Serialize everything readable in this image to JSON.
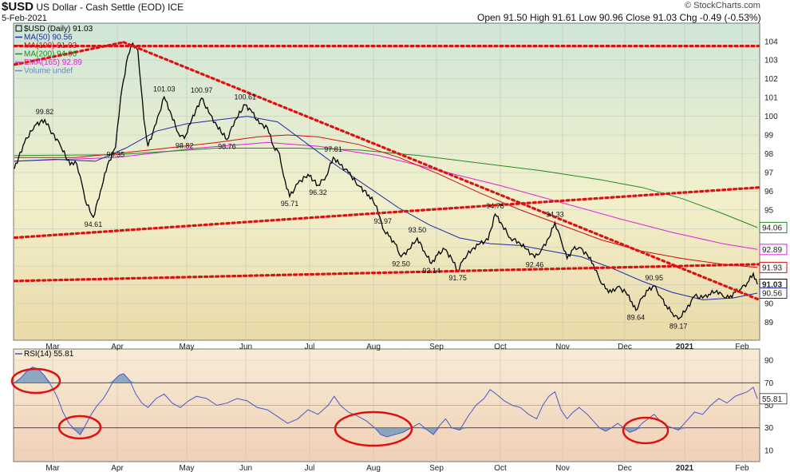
{
  "header": {
    "symbol": "$USD",
    "name": "US Dollar - Cash Settle (EOD) ICE",
    "date": "5-Feb-2021",
    "ohlc": "Open 91.50  High 91.61  Low 90.96  Close 91.03  Chg -0.49 (-0.53%)",
    "credit": "© StockCharts.com"
  },
  "colors": {
    "ma50": "#1c2aa8",
    "ma100": "#d01010",
    "ma200": "#218a21",
    "ema165": "#e020e0",
    "price": "#000000",
    "trend": "#dd1111",
    "rsi": "#4a58c8"
  },
  "chart_data": [
    {
      "type": "line",
      "title": "$USD (Daily) 91.03",
      "x_labels": [
        "Mar",
        "Apr",
        "May",
        "Jun",
        "Jul",
        "Aug",
        "Sep",
        "Oct",
        "Nov",
        "Dec",
        "2021",
        "Feb"
      ],
      "y_ticks": [
        89,
        90,
        91,
        92,
        93,
        94,
        95,
        96,
        97,
        98,
        99,
        100,
        101,
        102,
        103,
        104
      ],
      "ylim": [
        88.3,
        104.8
      ],
      "legend": [
        {
          "label": "$USD (Daily) 91.03"
        },
        {
          "label": "MA(50) 90.56"
        },
        {
          "label": "MA(100) 91.93"
        },
        {
          "label": "MA(200) 94.06"
        },
        {
          "label": "EMA(165) 92.89"
        },
        {
          "label": "Volume undef"
        }
      ],
      "price_path": [
        [
          0,
          97.2
        ],
        [
          10,
          98.6
        ],
        [
          20,
          99.5
        ],
        [
          30,
          99.82
        ],
        [
          35,
          99.3
        ],
        [
          45,
          98.5
        ],
        [
          55,
          97.4
        ],
        [
          60,
          97.6
        ],
        [
          65,
          96.8
        ],
        [
          70,
          95.5
        ],
        [
          78,
          94.61
        ],
        [
          85,
          96.0
        ],
        [
          92,
          97.4
        ],
        [
          100,
          98.35
        ],
        [
          105,
          101.0
        ],
        [
          112,
          103.2
        ],
        [
          117,
          103.9
        ],
        [
          122,
          103.5
        ],
        [
          128,
          99.8
        ],
        [
          132,
          98.4
        ],
        [
          140,
          99.6
        ],
        [
          148,
          101.03
        ],
        [
          155,
          100.1
        ],
        [
          162,
          99.1
        ],
        [
          168,
          98.82
        ],
        [
          175,
          99.8
        ],
        [
          185,
          100.97
        ],
        [
          192,
          100.2
        ],
        [
          200,
          99.5
        ],
        [
          210,
          98.76
        ],
        [
          218,
          99.8
        ],
        [
          228,
          100.61
        ],
        [
          235,
          100.2
        ],
        [
          242,
          99.6
        ],
        [
          250,
          99.4
        ],
        [
          256,
          98.4
        ],
        [
          262,
          98.0
        ],
        [
          266,
          96.8
        ],
        [
          272,
          95.71
        ],
        [
          280,
          96.4
        ],
        [
          290,
          96.9
        ],
        [
          300,
          96.32
        ],
        [
          308,
          96.8
        ],
        [
          315,
          97.81
        ],
        [
          322,
          97.4
        ],
        [
          330,
          97.0
        ],
        [
          340,
          96.3
        ],
        [
          350,
          95.8
        ],
        [
          358,
          95.2
        ],
        [
          364,
          94.0
        ],
        [
          370,
          93.6
        ],
        [
          376,
          93.2
        ],
        [
          382,
          92.5
        ],
        [
          390,
          92.9
        ],
        [
          398,
          93.5
        ],
        [
          405,
          92.8
        ],
        [
          412,
          92.14
        ],
        [
          418,
          92.6
        ],
        [
          425,
          92.9
        ],
        [
          432,
          92.4
        ],
        [
          438,
          91.75
        ],
        [
          444,
          92.4
        ],
        [
          452,
          92.9
        ],
        [
          460,
          93.2
        ],
        [
          468,
          93.4
        ],
        [
          475,
          94.78
        ],
        [
          482,
          94.2
        ],
        [
          490,
          93.5
        ],
        [
          498,
          93.3
        ],
        [
          506,
          92.9
        ],
        [
          514,
          92.46
        ],
        [
          520,
          92.8
        ],
        [
          528,
          93.5
        ],
        [
          534,
          94.33
        ],
        [
          540,
          93.4
        ],
        [
          546,
          92.4
        ],
        [
          552,
          92.9
        ],
        [
          558,
          93.0
        ],
        [
          566,
          92.6
        ],
        [
          572,
          92.1
        ],
        [
          578,
          91.3
        ],
        [
          584,
          90.8
        ],
        [
          590,
          90.6
        ],
        [
          596,
          90.9
        ],
        [
          604,
          90.6
        ],
        [
          610,
          90.1
        ],
        [
          614,
          89.64
        ],
        [
          620,
          90.3
        ],
        [
          626,
          90.7
        ],
        [
          632,
          90.95
        ],
        [
          638,
          90.4
        ],
        [
          644,
          89.9
        ],
        [
          650,
          89.5
        ],
        [
          656,
          89.17
        ],
        [
          664,
          89.7
        ],
        [
          672,
          90.4
        ],
        [
          680,
          90.3
        ],
        [
          686,
          90.5
        ],
        [
          694,
          90.7
        ],
        [
          700,
          90.4
        ],
        [
          706,
          90.3
        ],
        [
          712,
          90.6
        ],
        [
          718,
          90.8
        ],
        [
          724,
          91.1
        ],
        [
          730,
          91.61
        ],
        [
          734,
          91.03
        ]
      ],
      "ma50_path": [
        [
          0,
          97.6
        ],
        [
          40,
          97.7
        ],
        [
          80,
          97.6
        ],
        [
          110,
          98.3
        ],
        [
          140,
          99.2
        ],
        [
          170,
          99.6
        ],
        [
          200,
          99.8
        ],
        [
          230,
          100.0
        ],
        [
          260,
          99.7
        ],
        [
          290,
          98.5
        ],
        [
          320,
          97.3
        ],
        [
          350,
          96.2
        ],
        [
          380,
          95.1
        ],
        [
          410,
          94.2
        ],
        [
          440,
          93.5
        ],
        [
          470,
          93.2
        ],
        [
          500,
          93.1
        ],
        [
          530,
          92.8
        ],
        [
          560,
          92.5
        ],
        [
          590,
          91.9
        ],
        [
          620,
          91.2
        ],
        [
          650,
          90.6
        ],
        [
          680,
          90.2
        ],
        [
          710,
          90.3
        ],
        [
          734,
          90.56
        ]
      ],
      "ma100_path": [
        [
          0,
          97.8
        ],
        [
          60,
          97.8
        ],
        [
          100,
          98.0
        ],
        [
          150,
          98.3
        ],
        [
          200,
          98.6
        ],
        [
          240,
          98.9
        ],
        [
          270,
          99.0
        ],
        [
          300,
          98.9
        ],
        [
          340,
          98.5
        ],
        [
          380,
          97.8
        ],
        [
          420,
          96.9
        ],
        [
          460,
          95.9
        ],
        [
          500,
          95.0
        ],
        [
          540,
          94.2
        ],
        [
          580,
          93.4
        ],
        [
          620,
          92.8
        ],
        [
          660,
          92.4
        ],
        [
          700,
          92.1
        ],
        [
          734,
          91.93
        ]
      ],
      "ma200_path": [
        [
          0,
          97.9
        ],
        [
          100,
          97.95
        ],
        [
          200,
          98.3
        ],
        [
          280,
          98.3
        ],
        [
          340,
          98.2
        ],
        [
          400,
          97.9
        ],
        [
          460,
          97.5
        ],
        [
          520,
          97.1
        ],
        [
          580,
          96.6
        ],
        [
          620,
          96.2
        ],
        [
          660,
          95.6
        ],
        [
          700,
          94.8
        ],
        [
          734,
          94.06
        ]
      ],
      "ema165_path": [
        [
          0,
          97.6
        ],
        [
          100,
          97.8
        ],
        [
          180,
          98.3
        ],
        [
          250,
          98.6
        ],
        [
          300,
          98.4
        ],
        [
          360,
          97.9
        ],
        [
          420,
          97.1
        ],
        [
          480,
          96.3
        ],
        [
          540,
          95.4
        ],
        [
          600,
          94.5
        ],
        [
          650,
          93.8
        ],
        [
          700,
          93.2
        ],
        [
          734,
          92.89
        ]
      ],
      "trendlines": [
        [
          [
            -5,
            102.7
          ],
          [
            108,
            103.95
          ]
        ],
        [
          [
            0,
            103.75
          ],
          [
            735,
            103.75
          ]
        ],
        [
          [
            108,
            103.95
          ],
          [
            736,
            90.2
          ]
        ],
        [
          [
            -5,
            93.5
          ],
          [
            736,
            96.2
          ]
        ],
        [
          [
            -5,
            91.2
          ],
          [
            736,
            92.1
          ]
        ]
      ],
      "annotations": [
        {
          "text": "99.82",
          "x": 30,
          "y": 99.82
        },
        {
          "text": "94.61",
          "x": 78,
          "y": 94.61
        },
        {
          "text": "98.35",
          "x": 100,
          "y": 98.35
        },
        {
          "text": "101.03",
          "x": 148,
          "y": 101.03
        },
        {
          "text": "98.82",
          "x": 168,
          "y": 98.82
        },
        {
          "text": "100.97",
          "x": 185,
          "y": 100.97
        },
        {
          "text": "98.76",
          "x": 210,
          "y": 98.76
        },
        {
          "text": "100.61",
          "x": 228,
          "y": 100.61
        },
        {
          "text": "95.71",
          "x": 272,
          "y": 95.71
        },
        {
          "text": "96.32",
          "x": 300,
          "y": 96.32
        },
        {
          "text": "97.81",
          "x": 315,
          "y": 97.81
        },
        {
          "text": "93.97",
          "x": 364,
          "y": 93.97
        },
        {
          "text": "92.50",
          "x": 382,
          "y": 92.5
        },
        {
          "text": "93.50",
          "x": 398,
          "y": 93.5
        },
        {
          "text": "92.14",
          "x": 412,
          "y": 92.14
        },
        {
          "text": "91.75",
          "x": 438,
          "y": 91.75
        },
        {
          "text": "94.78",
          "x": 475,
          "y": 94.78
        },
        {
          "text": "92.46",
          "x": 514,
          "y": 92.46
        },
        {
          "text": "94.33",
          "x": 534,
          "y": 94.33
        },
        {
          "text": "90.95",
          "x": 632,
          "y": 90.95
        },
        {
          "text": "89.64",
          "x": 614,
          "y": 89.64
        },
        {
          "text": "89.17",
          "x": 656,
          "y": 89.17
        }
      ],
      "price_tags": [
        {
          "text": "94.06",
          "y": 94.06,
          "color": "#218a21"
        },
        {
          "text": "92.89",
          "y": 92.89,
          "color": "#e020e0"
        },
        {
          "text": "91.93",
          "y": 91.93,
          "color": "#d01010"
        },
        {
          "text": "91.03",
          "y": 91.03,
          "color": "#000000"
        },
        {
          "text": "90.56",
          "y": 90.56,
          "color": "#1c2aa8"
        }
      ]
    },
    {
      "type": "line",
      "title": "RSI(14) 55.81",
      "y_ticks": [
        10,
        30,
        50,
        70,
        90
      ],
      "ylim": [
        0,
        100
      ],
      "levels": [
        30,
        70
      ],
      "rsi_path": [
        [
          0,
          70
        ],
        [
          6,
          74
        ],
        [
          12,
          80
        ],
        [
          18,
          84
        ],
        [
          24,
          82
        ],
        [
          30,
          76
        ],
        [
          36,
          68
        ],
        [
          42,
          58
        ],
        [
          48,
          44
        ],
        [
          54,
          34
        ],
        [
          60,
          28
        ],
        [
          65,
          24
        ],
        [
          70,
          32
        ],
        [
          76,
          42
        ],
        [
          82,
          50
        ],
        [
          88,
          56
        ],
        [
          92,
          62
        ],
        [
          98,
          72
        ],
        [
          104,
          77
        ],
        [
          108,
          78
        ],
        [
          114,
          72
        ],
        [
          120,
          60
        ],
        [
          126,
          52
        ],
        [
          132,
          48
        ],
        [
          140,
          56
        ],
        [
          148,
          60
        ],
        [
          156,
          52
        ],
        [
          164,
          48
        ],
        [
          172,
          54
        ],
        [
          180,
          58
        ],
        [
          190,
          56
        ],
        [
          200,
          50
        ],
        [
          210,
          52
        ],
        [
          220,
          56
        ],
        [
          230,
          54
        ],
        [
          240,
          48
        ],
        [
          250,
          46
        ],
        [
          260,
          40
        ],
        [
          270,
          34
        ],
        [
          280,
          38
        ],
        [
          290,
          46
        ],
        [
          300,
          42
        ],
        [
          310,
          50
        ],
        [
          316,
          58
        ],
        [
          322,
          50
        ],
        [
          330,
          44
        ],
        [
          340,
          40
        ],
        [
          348,
          36
        ],
        [
          356,
          30
        ],
        [
          362,
          24
        ],
        [
          368,
          22
        ],
        [
          376,
          24
        ],
        [
          384,
          26
        ],
        [
          392,
          30
        ],
        [
          400,
          34
        ],
        [
          408,
          28
        ],
        [
          414,
          24
        ],
        [
          420,
          32
        ],
        [
          426,
          38
        ],
        [
          432,
          30
        ],
        [
          440,
          28
        ],
        [
          448,
          40
        ],
        [
          456,
          50
        ],
        [
          464,
          56
        ],
        [
          470,
          64
        ],
        [
          476,
          60
        ],
        [
          484,
          54
        ],
        [
          492,
          50
        ],
        [
          500,
          48
        ],
        [
          508,
          42
        ],
        [
          516,
          38
        ],
        [
          522,
          50
        ],
        [
          528,
          58
        ],
        [
          534,
          62
        ],
        [
          540,
          46
        ],
        [
          546,
          38
        ],
        [
          552,
          44
        ],
        [
          558,
          48
        ],
        [
          566,
          42
        ],
        [
          572,
          36
        ],
        [
          578,
          30
        ],
        [
          584,
          27
        ],
        [
          590,
          30
        ],
        [
          596,
          34
        ],
        [
          602,
          30
        ],
        [
          608,
          26
        ],
        [
          614,
          28
        ],
        [
          620,
          34
        ],
        [
          626,
          38
        ],
        [
          632,
          42
        ],
        [
          638,
          36
        ],
        [
          644,
          32
        ],
        [
          650,
          30
        ],
        [
          656,
          28
        ],
        [
          664,
          36
        ],
        [
          672,
          44
        ],
        [
          680,
          42
        ],
        [
          688,
          50
        ],
        [
          696,
          56
        ],
        [
          704,
          52
        ],
        [
          712,
          58
        ],
        [
          718,
          60
        ],
        [
          724,
          62
        ],
        [
          730,
          66
        ],
        [
          734,
          55.81
        ]
      ],
      "rsi_tag": {
        "text": "55.81",
        "y": 55.81
      }
    }
  ]
}
